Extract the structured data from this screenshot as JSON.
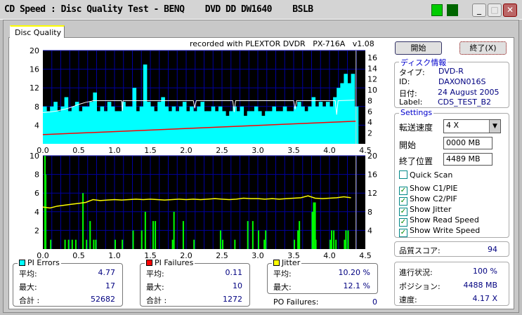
{
  "window": {
    "title": "CD Speed : Disc Quality Test - BENQ    DVD DD DW1640    BSLB"
  },
  "tabs": [
    {
      "label": "Disc Quality",
      "active": true
    }
  ],
  "recorded_with": "recorded with PLEXTOR DVDR   PX-716A   v1.08",
  "buttons": {
    "start": "開始",
    "exit": "終了(X)"
  },
  "disc_info": {
    "title": "ディスク情報",
    "type_label": "タイプ:",
    "type": "DVD-R",
    "id_label": "ID:",
    "id": "DAXON016S",
    "date_label": "日付:",
    "date": "24 August 2005",
    "label_label": "Label:",
    "label": "CDS_TEST_B2"
  },
  "settings": {
    "title": "Settings",
    "speed_label": "転送速度",
    "speed": "4 X",
    "start_label": "開始",
    "start": "0000 MB",
    "end_label": "終了位置",
    "end": "4489 MB",
    "checks": [
      {
        "label": "Quick Scan",
        "checked": false
      },
      {
        "label": "Show C1/PIE",
        "checked": true
      },
      {
        "label": "Show C2/PIF",
        "checked": true
      },
      {
        "label": "Show Jitter",
        "checked": true
      },
      {
        "label": "Show Read Speed",
        "checked": true
      },
      {
        "label": "Show Write Speed",
        "checked": true
      }
    ]
  },
  "quality": {
    "label": "品質スコア:",
    "value": "94"
  },
  "progress": {
    "progress_label": "進行状況:",
    "progress": "100 %",
    "position_label": "ポジション:",
    "position": "4488 MB",
    "speed_label": "速度:",
    "speed": "4.17 X"
  },
  "stats": {
    "pi_errors": {
      "title": "PI Errors",
      "color": "#00ffff",
      "avg_label": "平均:",
      "avg": "4.77",
      "max_label": "最大:",
      "max": "17",
      "total_label": "合計 :",
      "total": "52682"
    },
    "pi_failures": {
      "title": "PI Failures",
      "color": "#ff0000",
      "avg_label": "平均:",
      "avg": "0.11",
      "max_label": "最大:",
      "max": "10",
      "total_label": "合計 :",
      "total": "1272"
    },
    "jitter": {
      "title": "Jitter",
      "color": "#ffff00",
      "avg_label": "平均:",
      "avg": "10.20 %",
      "max_label": "最大:",
      "max": "12.1 %"
    },
    "po_failures": {
      "label": "PO Failures:",
      "value": "0"
    }
  },
  "chart_data": [
    {
      "type": "bar",
      "xlim": [
        0,
        4.5
      ],
      "ylim": [
        0,
        20
      ],
      "ylim_right": [
        0,
        17.3
      ],
      "xticks": [
        "0.0",
        "0.5",
        "1.0",
        "1.5",
        "2.0",
        "2.5",
        "3.0",
        "3.5",
        "4.0",
        "4.5"
      ],
      "yticks": [
        "4",
        "8",
        "12",
        "16",
        "20"
      ],
      "yticks_right": [
        "2",
        "4",
        "6",
        "8",
        "10",
        "12",
        "14",
        "16"
      ],
      "pie": {
        "x_step": 0.05,
        "color": "#00ffff",
        "values": [
          8,
          7,
          8,
          9,
          7,
          8,
          10,
          7,
          8,
          9,
          7,
          8,
          8,
          9,
          11,
          7,
          8,
          7,
          9,
          8,
          7,
          7,
          9,
          8,
          8,
          12,
          7,
          8,
          17,
          9,
          8,
          7,
          9,
          10,
          8,
          7,
          8,
          7,
          8,
          9,
          7,
          8,
          7,
          8,
          9,
          7,
          7,
          8,
          7,
          8,
          7,
          6,
          7,
          8,
          7,
          8,
          6,
          7,
          7,
          8,
          7,
          6,
          7,
          7,
          8,
          7,
          7,
          8,
          7,
          7,
          8,
          9,
          8,
          7,
          8,
          10,
          8,
          9,
          8,
          9,
          8,
          10,
          12,
          13,
          15,
          13,
          15,
          8
        ]
      },
      "read_speed": {
        "color": "#ffffff",
        "x": [
          0,
          0.1,
          0.2,
          0.3,
          0.4,
          0.5,
          0.6,
          0.68,
          0.7,
          1.1,
          1.11,
          1.12,
          2.1,
          2.12,
          2.14,
          2.65,
          2.67,
          2.69,
          3.5,
          3.52,
          3.54,
          4.08,
          4.1,
          4.12,
          4.35
        ],
        "values": [
          5.8,
          5.9,
          6.1,
          6.4,
          6.8,
          7.3,
          7.7,
          7.9,
          8,
          8,
          6.1,
          8,
          8,
          6.6,
          8,
          8,
          5.9,
          8,
          8,
          6.4,
          8,
          8,
          5.4,
          8,
          8.1
        ]
      },
      "write_speed": {
        "color": "#ff0000",
        "x": [
          0,
          4.37
        ],
        "values": [
          1.7,
          4.2
        ]
      }
    },
    {
      "type": "bar",
      "xlim": [
        0,
        4.5
      ],
      "ylim": [
        0,
        10
      ],
      "ylim_right": [
        0,
        20
      ],
      "xticks": [
        "0.0",
        "0.5",
        "1.0",
        "1.5",
        "2.0",
        "2.5",
        "3.0",
        "3.5",
        "4.0",
        "4.5"
      ],
      "yticks": [
        "2",
        "4",
        "6",
        "8",
        "10"
      ],
      "yticks_right": [
        "4",
        "8",
        "12",
        "16",
        "20"
      ],
      "pif": {
        "color": "#00ff00",
        "x": [
          0.02,
          0.03,
          0.1,
          0.3,
          0.35,
          0.4,
          0.45,
          0.55,
          0.6,
          0.65,
          0.7,
          0.73,
          1.0,
          1.1,
          1.25,
          1.37,
          1.42,
          1.53,
          1.56,
          1.8,
          1.82,
          1.95,
          2.1,
          2.47,
          2.5,
          2.67,
          2.85,
          2.92,
          3.0,
          3.08,
          3.1,
          3.5,
          3.55,
          3.57,
          3.75,
          3.77,
          3.79,
          3.8,
          4.0,
          4.02,
          4.05,
          4.08,
          4.2,
          4.22,
          4.25
        ],
        "values": [
          10,
          8,
          1,
          1,
          1,
          1,
          1,
          6,
          1,
          3,
          1,
          1,
          1,
          1,
          2,
          2,
          4,
          3,
          3,
          1,
          4,
          3,
          1,
          2,
          1,
          1,
          3,
          3,
          2,
          1,
          2,
          1,
          2,
          3,
          4,
          5,
          5,
          1,
          1,
          2,
          2,
          1,
          1,
          2,
          2
        ]
      },
      "jitter": {
        "color": "#ffff00",
        "x_step": 0.1,
        "values": [
          9,
          8.8,
          9.2,
          9.4,
          9.6,
          9.8,
          10.0,
          10.6,
          10.4,
          10.5,
          10.6,
          10.5,
          10.6,
          10.7,
          10.6,
          10.7,
          10.6,
          10.5,
          10.6,
          10.7,
          10.6,
          10.7,
          10.6,
          10.7,
          10.8,
          10.7,
          10.6,
          10.7,
          10.9,
          10.8,
          10.8,
          10.7,
          10.8,
          10.7,
          10.8,
          10.9,
          11.0,
          11.4,
          10.9,
          10.8,
          10.9,
          11.0,
          11.2,
          11.0
        ]
      }
    }
  ]
}
